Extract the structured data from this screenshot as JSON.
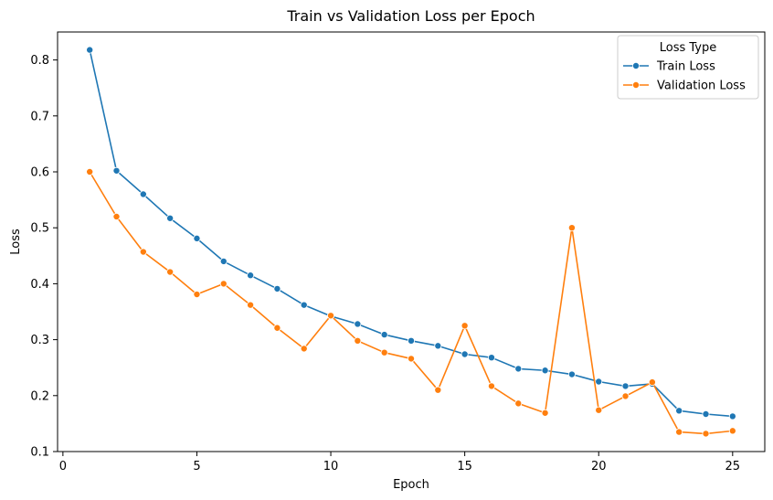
{
  "chart_data": {
    "type": "line",
    "title": "Train vs Validation Loss per Epoch",
    "xlabel": "Epoch",
    "ylabel": "Loss",
    "xlim": [
      -0.2,
      26.2
    ],
    "ylim": [
      0.1,
      0.85
    ],
    "xticks": [
      0,
      5,
      10,
      15,
      20,
      25
    ],
    "yticks": [
      0.1,
      0.2,
      0.3,
      0.4,
      0.5,
      0.6,
      0.7,
      0.8
    ],
    "xtick_labels": [
      "0",
      "5",
      "10",
      "15",
      "20",
      "25"
    ],
    "ytick_labels": [
      "0.1",
      "0.2",
      "0.3",
      "0.4",
      "0.5",
      "0.6",
      "0.7",
      "0.8"
    ],
    "grid": false,
    "legend": {
      "title": "Loss Type",
      "placement": "top-right"
    },
    "x": [
      1,
      2,
      3,
      4,
      5,
      6,
      7,
      8,
      9,
      10,
      11,
      12,
      13,
      14,
      15,
      16,
      17,
      18,
      19,
      20,
      21,
      22,
      23,
      24,
      25
    ],
    "series": [
      {
        "name": "Train Loss",
        "color": "#1f77b4",
        "marker": "circle",
        "values": [
          0.818,
          0.602,
          0.56,
          0.517,
          0.481,
          0.44,
          0.415,
          0.391,
          0.362,
          0.342,
          0.328,
          0.309,
          0.298,
          0.289,
          0.274,
          0.268,
          0.248,
          0.245,
          0.238,
          0.225,
          0.217,
          0.221,
          0.173,
          0.167,
          0.163
        ]
      },
      {
        "name": "Validation Loss",
        "color": "#ff7f0e",
        "marker": "circle",
        "values": [
          0.6,
          0.52,
          0.457,
          0.421,
          0.381,
          0.4,
          0.362,
          0.321,
          0.284,
          0.343,
          0.298,
          0.277,
          0.266,
          0.21,
          0.325,
          0.217,
          0.186,
          0.169,
          0.5,
          0.174,
          0.199,
          0.224,
          0.135,
          0.132,
          0.137
        ]
      }
    ]
  }
}
